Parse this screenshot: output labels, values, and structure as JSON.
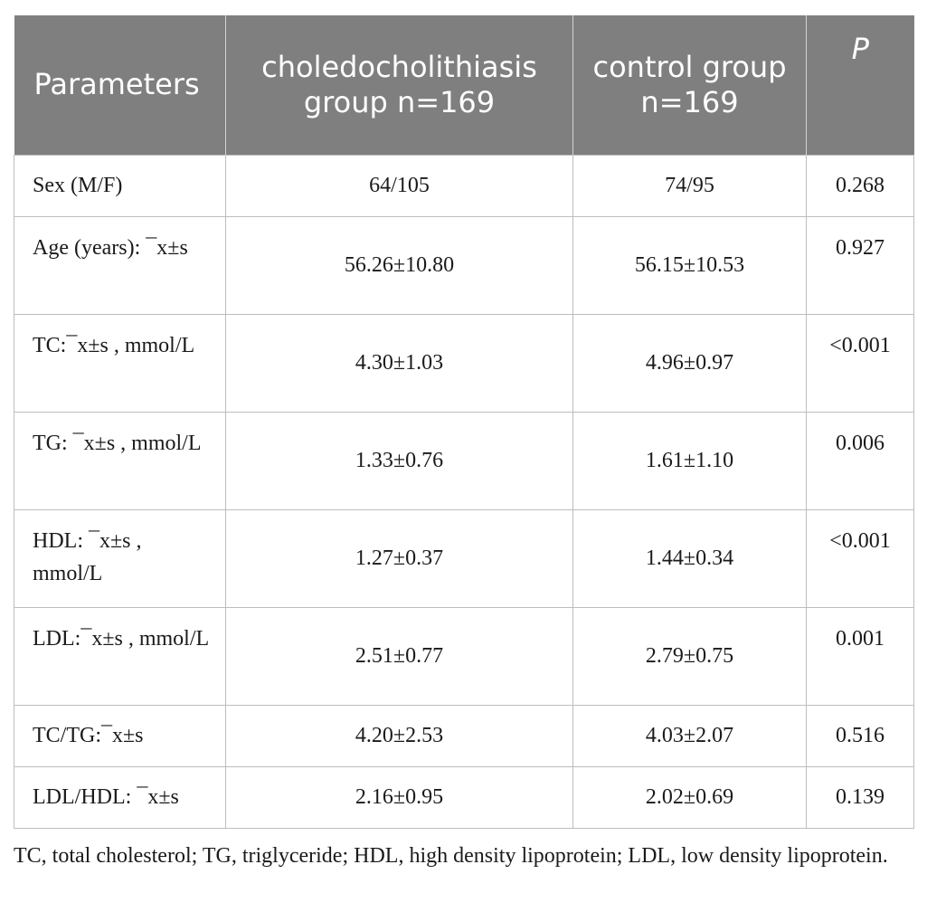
{
  "table": {
    "headers": [
      "Parameters",
      "choledocholithiasis group n=169",
      "control group n=169",
      "P"
    ],
    "rows": [
      {
        "param": "Sex (M/F)",
        "case": "64/105",
        "control": "74/95",
        "p": "0.268"
      },
      {
        "param": "Age (years): ¯x±s",
        "case": "56.26±10.80",
        "control": "56.15±10.53",
        "p": "0.927"
      },
      {
        "param": "TC:¯x±s , mmol/L",
        "case": "4.30±1.03",
        "control": "4.96±0.97",
        "p": "<0.001"
      },
      {
        "param": "TG: ¯x±s , mmol/L",
        "case": "1.33±0.76",
        "control": "1.61±1.10",
        "p": "0.006"
      },
      {
        "param": "HDL: ¯x±s , mmol/L",
        "case": "1.27±0.37",
        "control": "1.44±0.34",
        "p": "<0.001"
      },
      {
        "param": "LDL:¯x±s , mmol/L",
        "case": "2.51±0.77",
        "control": "2.79±0.75",
        "p": "0.001"
      },
      {
        "param": "TC/TG:¯x±s",
        "case": "4.20±2.53",
        "control": "4.03±2.07",
        "p": "0.516"
      },
      {
        "param": "LDL/HDL: ¯x±s",
        "case": "2.16±0.95",
        "control": "2.02±0.69",
        "p": "0.139"
      }
    ]
  },
  "footnote": "TC, total cholesterol; TG, triglyceride; HDL, high density lipoprotein; LDL, low density lipoprotein.",
  "colors": {
    "header_bg": "#7f7f7f",
    "header_text": "#ffffff",
    "grid": "#bdbdbd"
  }
}
